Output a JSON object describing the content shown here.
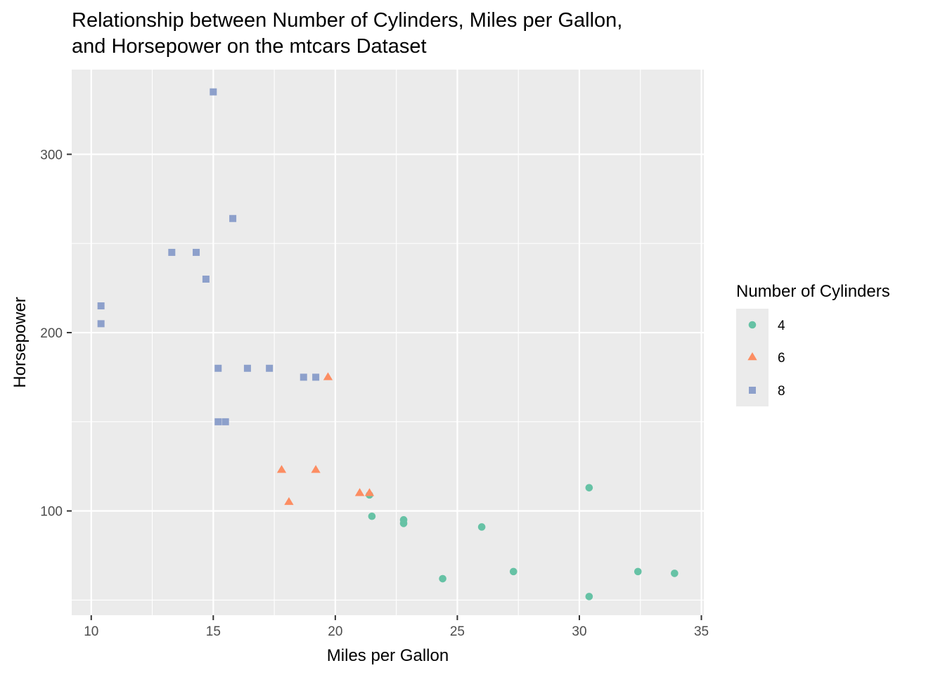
{
  "chart_data": {
    "type": "scatter",
    "title_lines": [
      "Relationship between Number of Cylinders, Miles per Gallon,",
      "and Horsepower on the mtcars Dataset"
    ],
    "xlabel": "Miles per Gallon",
    "ylabel": "Horsepower",
    "xlim": [
      9.2,
      35.1
    ],
    "ylim": [
      41.5,
      347.5
    ],
    "xticks": [
      10,
      15,
      20,
      25,
      30,
      35
    ],
    "xticks_minor": [
      12.5,
      17.5,
      22.5,
      27.5,
      32.5
    ],
    "yticks": [
      100,
      200,
      300
    ],
    "yticks_minor": [
      50,
      150,
      250
    ],
    "grid": true,
    "legend": {
      "title": "Number of Cylinders",
      "position": "right"
    },
    "series": [
      {
        "name": "4",
        "shape": "circle",
        "color": "#66C2A5",
        "points": [
          [
            22.8,
            93
          ],
          [
            24.4,
            62
          ],
          [
            22.8,
            95
          ],
          [
            32.4,
            66
          ],
          [
            30.4,
            52
          ],
          [
            33.9,
            65
          ],
          [
            21.5,
            97
          ],
          [
            27.3,
            66
          ],
          [
            26.0,
            91
          ],
          [
            30.4,
            113
          ],
          [
            21.4,
            109
          ]
        ]
      },
      {
        "name": "6",
        "shape": "triangle",
        "color": "#FC8D62",
        "points": [
          [
            21.0,
            110
          ],
          [
            21.0,
            110
          ],
          [
            21.4,
            110
          ],
          [
            18.1,
            105
          ],
          [
            19.2,
            123
          ],
          [
            17.8,
            123
          ],
          [
            19.7,
            175
          ]
        ]
      },
      {
        "name": "8",
        "shape": "square",
        "color": "#8DA0CB",
        "points": [
          [
            18.7,
            175
          ],
          [
            14.3,
            245
          ],
          [
            16.4,
            180
          ],
          [
            17.3,
            180
          ],
          [
            15.2,
            180
          ],
          [
            10.4,
            205
          ],
          [
            10.4,
            215
          ],
          [
            14.7,
            230
          ],
          [
            15.5,
            150
          ],
          [
            15.2,
            150
          ],
          [
            13.3,
            245
          ],
          [
            19.2,
            175
          ],
          [
            15.8,
            264
          ],
          [
            15.0,
            335
          ]
        ]
      }
    ]
  }
}
